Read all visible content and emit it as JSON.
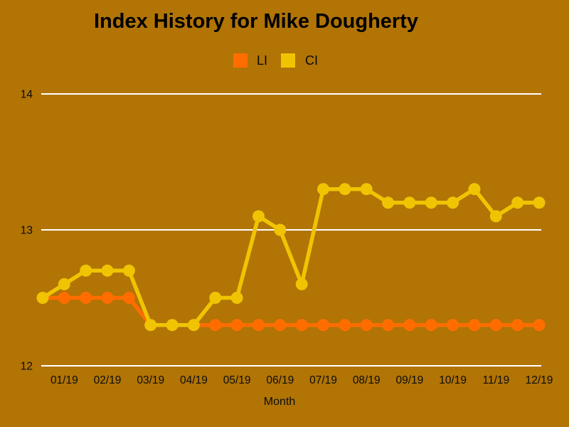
{
  "colors": {
    "background": "#B17405",
    "grid_line": "#FFFFFF",
    "text": "#0A0A0A",
    "title_text": "#000000"
  },
  "chart_data": {
    "type": "line",
    "title": "Index History for Mike Dougherty",
    "xlabel": "Month",
    "ylabel": "",
    "legend_position": "top-center",
    "grid": "horizontal-only",
    "marker": "circle",
    "n_points": 24,
    "points_per_month": 2,
    "x_tick_labels": [
      "01/19",
      "02/19",
      "03/19",
      "04/19",
      "05/19",
      "06/19",
      "07/19",
      "08/19",
      "09/19",
      "10/19",
      "11/19",
      "12/19"
    ],
    "y_ticks": [
      14,
      13,
      12
    ],
    "ylim": [
      12,
      14
    ],
    "series": [
      {
        "name": "LI",
        "color": "#FF6D01",
        "values": [
          12.5,
          12.5,
          12.5,
          12.5,
          12.5,
          12.3,
          12.3,
          12.3,
          12.3,
          12.3,
          12.3,
          12.3,
          12.3,
          12.3,
          12.3,
          12.3,
          12.3,
          12.3,
          12.3,
          12.3,
          12.3,
          12.3,
          12.3,
          12.3
        ]
      },
      {
        "name": "CI",
        "color": "#F0C402",
        "values": [
          12.5,
          12.6,
          12.7,
          12.7,
          12.7,
          12.3,
          12.3,
          12.3,
          12.5,
          12.5,
          13.1,
          13.0,
          12.6,
          13.3,
          13.3,
          13.3,
          13.2,
          13.2,
          13.2,
          13.2,
          13.3,
          13.1,
          13.2,
          13.2
        ]
      }
    ]
  }
}
